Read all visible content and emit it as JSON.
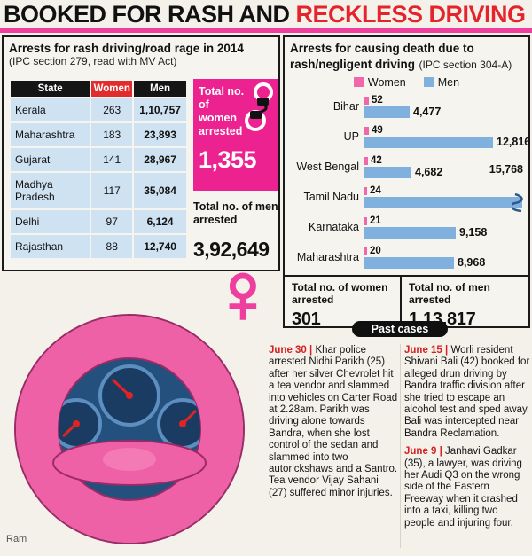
{
  "header": {
    "title_black": "BOOKED FOR RASH AND ",
    "title_red": "RECKLESS DRIVING"
  },
  "left_panel": {
    "title": "Arrests for rash driving/road rage in 2014",
    "subtitle": "(IPC section 279, read with MV Act)",
    "women_box": {
      "label": "Total no. of women arrested",
      "value": "1,355"
    },
    "men_total": {
      "label": "Total no. of men arrested",
      "value": "3,92,649"
    }
  },
  "right_panel": {
    "title": "Arrests for causing death due to rash/negligent driving",
    "subtitle": "(IPC section 304-A)",
    "legend": {
      "women": "Women",
      "men": "Men"
    },
    "totals": {
      "women_label": "Total no. of women arrested",
      "women_value": "301",
      "men_label": "Total no. of men arrested",
      "men_value": "1,13,817"
    }
  },
  "past_cases": {
    "badge": "Past cases",
    "stories": [
      {
        "date": "June 30",
        "column": 1,
        "text": "Khar police arrested Nidhi Parikh (25) after her silver Chevrolet hit a tea vendor and slammed into vehicles on Carter Road at 2.28am. Parikh was driving alone towards Bandra, when she lost control of the sedan and slammed into two autorickshaws and a Santro. Tea vendor Vijay Sahani (27) suffered minor injuries."
      },
      {
        "date": "June 15",
        "column": 2,
        "text": "Worli resident Shivani Bali (42) booked for alleged drun driving by Bandra traffic division after she tried to escape an alcohol test and sped away. Bali was intercepted near Bandra Reclamation."
      },
      {
        "date": "June 9",
        "column": 2,
        "text": "Janhavi Gadkar (35), a lawyer, was driving her Audi Q3 on the wrong side of the Eastern Freeway when it crashed into a taxi, killing two people and injuring four."
      }
    ]
  },
  "signature": "Ram",
  "icons": {
    "handcuffs": "handcuffs-icon",
    "female_symbol": "♀",
    "bar_break": "squiggle"
  },
  "colors": {
    "headline_red": "#e5232b",
    "magenta": "#ee3f9e",
    "women_box_pink": "#ec2290",
    "bar_pink": "#f068aa",
    "bar_blue": "#7fb0de",
    "table_row_blue": "#cfe2f1",
    "women_header_red": "#e02c2c",
    "date_red": "#d61f1f"
  },
  "chart_data": [
    {
      "type": "table",
      "title": "Arrests for rash driving/road rage in 2014 (IPC section 279, read with MV Act)",
      "columns": [
        "State",
        "Women",
        "Men"
      ],
      "rows": [
        [
          "Kerala",
          "263",
          "1,10,757"
        ],
        [
          "Maharashtra",
          "183",
          "23,893"
        ],
        [
          "Gujarat",
          "141",
          "28,967"
        ],
        [
          "Madhya Pradesh",
          "117",
          "35,084"
        ],
        [
          "Delhi",
          "97",
          "6,124"
        ],
        [
          "Rajasthan",
          "88",
          "12,740"
        ]
      ],
      "totals": {
        "women": 1355,
        "men": 392649
      }
    },
    {
      "type": "bar",
      "orientation": "horizontal",
      "title": "Arrests for causing death due to rash/negligent driving (IPC section 304-A)",
      "categories": [
        "Bihar",
        "UP",
        "West Bengal",
        "Tamil Nadu",
        "Karnataka",
        "Maharashtra"
      ],
      "series": [
        {
          "name": "Women",
          "values": [
            52,
            49,
            42,
            24,
            21,
            20
          ],
          "labels": [
            "52",
            "49",
            "42",
            "24",
            "21",
            "20"
          ]
        },
        {
          "name": "Men",
          "values": [
            4477,
            12816,
            4682,
            15768,
            9158,
            8968
          ],
          "labels": [
            "4,477",
            "12,816",
            "4,682",
            "15,768",
            "9,158",
            "8,968"
          ]
        }
      ],
      "xlim": [
        0,
        15768
      ],
      "legend_position": "top",
      "note": "Tamil Nadu men bar runs to the panel edge with a break squiggle; its value 15,768 is printed at the right of the West Bengal row",
      "totals": {
        "women": 301,
        "men": 113817
      }
    }
  ]
}
